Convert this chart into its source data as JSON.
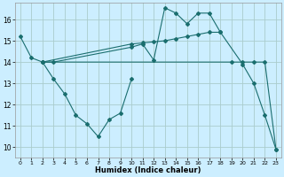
{
  "xlabel": "Humidex (Indice chaleur)",
  "background_color": "#cceeff",
  "grid_color": "#aacccc",
  "line_color": "#1a6e6e",
  "xlim": [
    -0.5,
    23.5
  ],
  "ylim": [
    9.5,
    16.8
  ],
  "xticks": [
    0,
    1,
    2,
    3,
    4,
    5,
    6,
    7,
    8,
    9,
    10,
    11,
    12,
    13,
    14,
    15,
    16,
    17,
    18,
    19,
    20,
    21,
    22,
    23
  ],
  "yticks": [
    10,
    11,
    12,
    13,
    14,
    15,
    16
  ],
  "series1_x": [
    0,
    1,
    2,
    3,
    10,
    11,
    12,
    13,
    14,
    15,
    16,
    17,
    18,
    20,
    21,
    22,
    23
  ],
  "series1_y": [
    15.2,
    14.2,
    14.0,
    14.0,
    14.7,
    14.85,
    14.1,
    16.55,
    16.3,
    15.8,
    16.3,
    16.3,
    15.4,
    13.9,
    13.0,
    11.5,
    9.9
  ],
  "series2_x": [
    2,
    3,
    4,
    5,
    6,
    7,
    8,
    9,
    10
  ],
  "series2_y": [
    14.0,
    13.2,
    12.5,
    11.5,
    11.1,
    10.5,
    11.3,
    11.6,
    13.2
  ],
  "series3_x": [
    2,
    10,
    11,
    12,
    13,
    14,
    15,
    16,
    17,
    18
  ],
  "series3_y": [
    14.0,
    14.85,
    14.9,
    14.95,
    15.0,
    15.1,
    15.2,
    15.3,
    15.4,
    15.4
  ],
  "series4_x": [
    2,
    19,
    20,
    21,
    22,
    23
  ],
  "series4_y": [
    14.0,
    14.0,
    14.0,
    14.0,
    14.0,
    9.9
  ]
}
